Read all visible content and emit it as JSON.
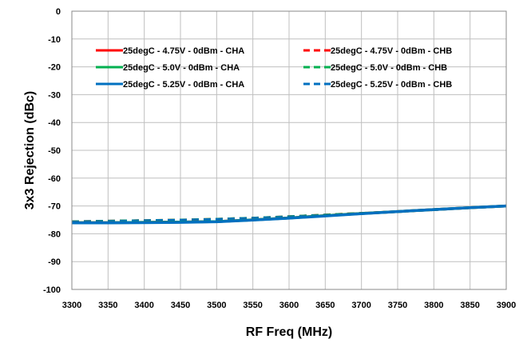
{
  "chart_data": {
    "type": "line",
    "title": "",
    "xlabel": "RF Freq (MHz)",
    "ylabel": "3x3 Rejection (dBc)",
    "xlim": [
      3300,
      3900
    ],
    "ylim": [
      -100,
      0
    ],
    "xticks": [
      3300,
      3350,
      3400,
      3450,
      3500,
      3550,
      3600,
      3650,
      3700,
      3750,
      3800,
      3850,
      3900
    ],
    "yticks": [
      0,
      -10,
      -20,
      -30,
      -40,
      -50,
      -60,
      -70,
      -80,
      -90,
      -100
    ],
    "grid": true,
    "legend_position": "top",
    "x": [
      3300,
      3350,
      3400,
      3450,
      3500,
      3550,
      3600,
      3650,
      3700,
      3750,
      3800,
      3850,
      3900
    ],
    "series": [
      {
        "name": "25degC - 4.75V - 0dBm - CHA",
        "color": "#ff0000",
        "dash": "solid",
        "values": [
          -76.0,
          -76.0,
          -75.9,
          -75.8,
          -75.6,
          -75.0,
          -74.3,
          -73.5,
          -72.7,
          -72.0,
          -71.3,
          -70.6,
          -70.0
        ]
      },
      {
        "name": "25degC - 5.0V - 0dBm - CHA",
        "color": "#00b050",
        "dash": "solid",
        "values": [
          -76.0,
          -76.0,
          -75.9,
          -75.8,
          -75.6,
          -75.0,
          -74.3,
          -73.5,
          -72.7,
          -72.0,
          -71.3,
          -70.6,
          -70.0
        ]
      },
      {
        "name": "25degC - 5.25V - 0dBm - CHA",
        "color": "#0070c0",
        "dash": "solid",
        "values": [
          -76.1,
          -76.1,
          -76.0,
          -75.9,
          -75.7,
          -75.1,
          -74.4,
          -73.6,
          -72.8,
          -72.0,
          -71.3,
          -70.6,
          -70.0
        ]
      },
      {
        "name": "25degC - 4.75V - 0dBm - CHB",
        "color": "#ff0000",
        "dash": "dashed",
        "values": [
          -75.6,
          -75.4,
          -75.2,
          -75.0,
          -74.7,
          -74.3,
          -73.8,
          -73.2,
          -72.6,
          -72.0,
          -71.3,
          -70.6,
          -70.0
        ]
      },
      {
        "name": "25degC - 5.0V - 0dBm - CHB",
        "color": "#00b050",
        "dash": "dashed",
        "values": [
          -75.6,
          -75.4,
          -75.2,
          -75.0,
          -74.7,
          -74.3,
          -73.8,
          -73.2,
          -72.6,
          -72.0,
          -71.3,
          -70.6,
          -70.0
        ]
      },
      {
        "name": "25degC - 5.25V - 0dBm - CHB",
        "color": "#0070c0",
        "dash": "dashed",
        "values": [
          -75.7,
          -75.5,
          -75.3,
          -75.1,
          -74.8,
          -74.4,
          -73.9,
          -73.3,
          -72.7,
          -72.1,
          -71.4,
          -70.7,
          -70.1
        ]
      }
    ]
  }
}
